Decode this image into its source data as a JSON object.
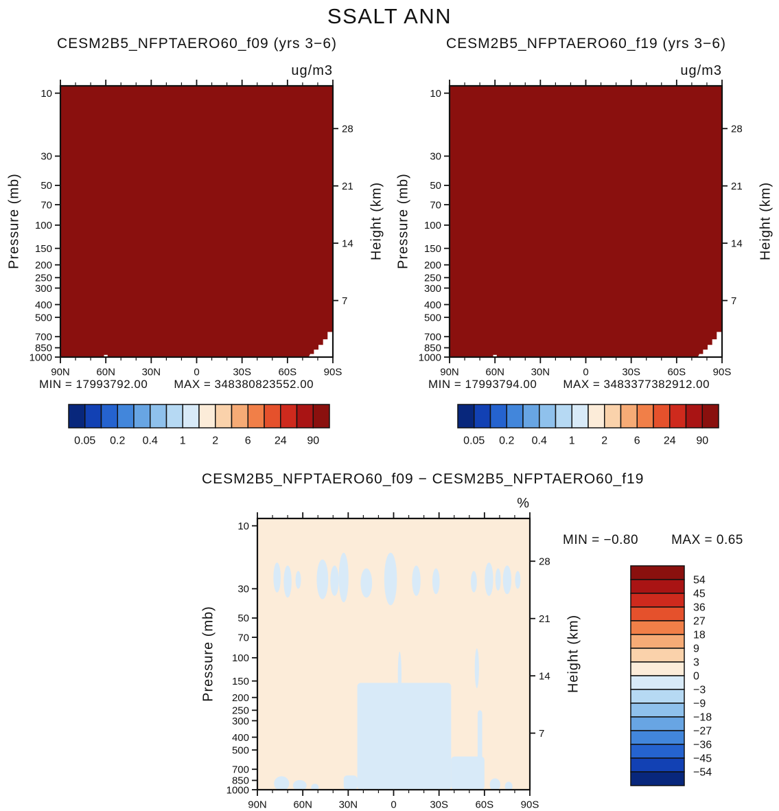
{
  "chart_data": {
    "type": "heatmap",
    "suptitle": "SSALT ANN",
    "axes": {
      "x": {
        "tick_deg": [
          90,
          60,
          30,
          0,
          -30,
          -60,
          -90
        ],
        "tick_labels": [
          "90N",
          "60N",
          "30N",
          "0",
          "30S",
          "60S",
          "90S"
        ],
        "minor_step_deg": 10,
        "range_deg": [
          90,
          -90
        ]
      },
      "pressure": {
        "label": "Pressure (mb)",
        "scale": "log",
        "ticks": [
          10,
          30,
          50,
          70,
          100,
          150,
          200,
          250,
          300,
          400,
          500,
          700,
          850,
          1000
        ],
        "top_mb": 8.8,
        "bottom_mb": 1000
      },
      "height": {
        "label": "Height (km)",
        "ticks": [
          28,
          21,
          14,
          7
        ],
        "p0_mb": 1013,
        "scale_height_km": 7
      }
    },
    "palette": [
      "#08277c",
      "#1241b4",
      "#2563cf",
      "#4286db",
      "#68a5e3",
      "#8fc1ec",
      "#b6d9f3",
      "#d8eaf8",
      "#fcecd9",
      "#fad2ab",
      "#f6ab76",
      "#f17f48",
      "#e5512c",
      "#ce2a1d",
      "#a91414",
      "#8a100e"
    ],
    "terrain_white": [
      [
        -74,
        1000
      ],
      [
        -75,
        948
      ],
      [
        -77.5,
        948
      ],
      [
        -77.5,
        878
      ],
      [
        -80.5,
        878
      ],
      [
        -80.5,
        808
      ],
      [
        -83.5,
        808
      ],
      [
        -83.5,
        733
      ],
      [
        -86.5,
        733
      ],
      [
        -86.5,
        645
      ],
      [
        -90,
        645
      ],
      [
        -90,
        1000
      ]
    ],
    "terrain_notches": [
      {
        "lat1": 61.2,
        "lat2": 58.8,
        "p1": 962,
        "p2": 1000
      }
    ],
    "panels": [
      {
        "id": "f09",
        "title": "CESM2B5_NFPTAERO60_f09 (yrs 3−6)",
        "units": "ug/m3",
        "stats": {
          "min": 17993792.0,
          "max": 348380823552.0,
          "min_text": "MIN = 17993792.00",
          "max_text": "MAX = 348380823552.00"
        },
        "colorbar_labels": [
          "0.05",
          "0.2",
          "0.4",
          "1",
          "2",
          "6",
          "24",
          "90"
        ],
        "field_note": "entire cross-section saturated above top contour level (dark red); white terrain notch near 90S below ~650 mb"
      },
      {
        "id": "f19",
        "title": "CESM2B5_NFPTAERO60_f19 (yrs 3−6)",
        "units": "ug/m3",
        "stats": {
          "min": 17993794.0,
          "max": 3483377382912.0,
          "min_text": "MIN = 17993794.00",
          "max_text": "MAX = 3483377382912.00"
        },
        "colorbar_labels": [
          "0.05",
          "0.2",
          "0.4",
          "1",
          "2",
          "6",
          "24",
          "90"
        ],
        "field_note": "entire cross-section saturated above top contour level (dark red); white terrain notch near 90S below ~650 mb"
      }
    ],
    "difference": {
      "id": "difference",
      "title": "CESM2B5_NFPTAERO60_f09 − CESM2B5_NFPTAERO60_f19",
      "units": "%",
      "stats": {
        "min": -0.8,
        "max": 0.65,
        "min_text": "MIN = −0.80",
        "max_text": "MAX =  0.65"
      },
      "colorbar_labels": [
        "54",
        "45",
        "36",
        "27",
        "18",
        "9",
        "3",
        "0",
        "−3",
        "−9",
        "−18",
        "−27",
        "−36",
        "−45",
        "−54"
      ],
      "background_cell": "0 to 3 % (pale cream)",
      "negative_cell": "-3 to 0 % (pale blue)",
      "negative_regions": [
        {
          "s": "e",
          "lat": 77,
          "hw": 2.4,
          "p1": 19,
          "p2": 32
        },
        {
          "s": "e",
          "lat": 70,
          "hw": 2.6,
          "p1": 20,
          "p2": 35
        },
        {
          "s": "e",
          "lat": 63,
          "hw": 1.8,
          "p1": 22,
          "p2": 30
        },
        {
          "s": "e",
          "lat": 47,
          "hw": 3.8,
          "p1": 18,
          "p2": 36
        },
        {
          "s": "e",
          "lat": 39,
          "hw": 2.8,
          "p1": 20,
          "p2": 34
        },
        {
          "s": "e",
          "lat": 33,
          "hw": 3.2,
          "p1": 16,
          "p2": 38
        },
        {
          "s": "e",
          "lat": 18,
          "hw": 3.8,
          "p1": 21,
          "p2": 35
        },
        {
          "s": "e",
          "lat": 2,
          "hw": 4.2,
          "p1": 16,
          "p2": 40
        },
        {
          "s": "e",
          "lat": -15,
          "hw": 2.8,
          "p1": 20,
          "p2": 34
        },
        {
          "s": "e",
          "lat": -28,
          "hw": 2.4,
          "p1": 21,
          "p2": 33
        },
        {
          "s": "e",
          "lat": -53,
          "hw": 2.0,
          "p1": 22,
          "p2": 32
        },
        {
          "s": "e",
          "lat": -63,
          "hw": 2.8,
          "p1": 19,
          "p2": 34
        },
        {
          "s": "e",
          "lat": -69,
          "hw": 1.8,
          "p1": 21,
          "p2": 31
        },
        {
          "s": "e",
          "lat": -75,
          "hw": 2.8,
          "p1": 20,
          "p2": 33
        },
        {
          "s": "e",
          "lat": -82,
          "hw": 1.8,
          "p1": 22,
          "p2": 30
        },
        {
          "s": "e",
          "lat": -4,
          "hw": 1.2,
          "p1": 90,
          "p2": 200
        },
        {
          "s": "e",
          "lat": -55,
          "hw": 1.4,
          "p1": 85,
          "p2": 170
        },
        {
          "s": "r",
          "lat1": 24,
          "lat2": -38,
          "p1": 155,
          "p2": 1000
        },
        {
          "s": "r",
          "lat1": 33,
          "lat2": 24,
          "p1": 780,
          "p2": 1000
        },
        {
          "s": "r",
          "lat1": -38,
          "lat2": -60,
          "p1": 560,
          "p2": 1000
        },
        {
          "s": "r",
          "lat1": -55.5,
          "lat2": -58.5,
          "p1": 250,
          "p2": 1000
        },
        {
          "s": "e",
          "lat": 74,
          "hw": 5.0,
          "p1": 790,
          "p2": 1020
        },
        {
          "s": "e",
          "lat": 62,
          "hw": 4.5,
          "p1": 845,
          "p2": 1020
        },
        {
          "s": "e",
          "lat": 52,
          "hw": 2.5,
          "p1": 900,
          "p2": 1020
        },
        {
          "s": "e",
          "lat": -67,
          "hw": 3.5,
          "p1": 820,
          "p2": 1020
        },
        {
          "s": "e",
          "lat": -76,
          "hw": 2.5,
          "p1": 870,
          "p2": 1020
        }
      ]
    }
  }
}
